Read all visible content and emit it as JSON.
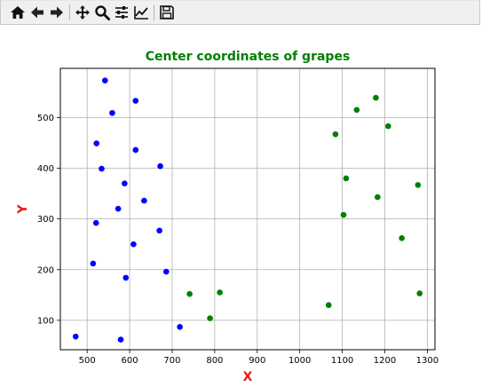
{
  "toolbar": {
    "buttons": [
      {
        "name": "home-icon",
        "label": "Home"
      },
      {
        "name": "back-icon",
        "label": "Back"
      },
      {
        "name": "forward-icon",
        "label": "Forward"
      },
      {
        "name": "pan-icon",
        "label": "Pan"
      },
      {
        "name": "zoom-icon",
        "label": "Zoom"
      },
      {
        "name": "subplots-icon",
        "label": "Configure subplots"
      },
      {
        "name": "edit-axis-icon",
        "label": "Edit axis"
      },
      {
        "name": "save-icon",
        "label": "Save"
      }
    ]
  },
  "chart_data": {
    "type": "scatter",
    "title": "Center coordinates of grapes",
    "title_color": "#008000",
    "xlabel": "X",
    "ylabel": "Y",
    "axis_label_color": "#e8191b",
    "xlim": [
      437,
      1318
    ],
    "ylim": [
      42,
      597
    ],
    "xticks": [
      500,
      600,
      700,
      800,
      900,
      1000,
      1100,
      1200,
      1300
    ],
    "xtick_labels": [
      "500",
      "600",
      "700",
      "800",
      "900",
      "1000",
      "1100",
      "1200",
      "1300"
    ],
    "yticks": [
      100,
      200,
      300,
      400,
      500
    ],
    "ytick_labels": [
      "100",
      "200",
      "300",
      "400",
      "500"
    ],
    "grid": true,
    "series": [
      {
        "color": "#0000ff",
        "points": [
          {
            "x": 542,
            "y": 573
          },
          {
            "x": 614,
            "y": 533
          },
          {
            "x": 559,
            "y": 509
          },
          {
            "x": 522,
            "y": 449
          },
          {
            "x": 614,
            "y": 436
          },
          {
            "x": 534,
            "y": 399
          },
          {
            "x": 672,
            "y": 404
          },
          {
            "x": 588,
            "y": 370
          },
          {
            "x": 634,
            "y": 336
          },
          {
            "x": 573,
            "y": 320
          },
          {
            "x": 521,
            "y": 292
          },
          {
            "x": 670,
            "y": 277
          },
          {
            "x": 609,
            "y": 250
          },
          {
            "x": 514,
            "y": 212
          },
          {
            "x": 686,
            "y": 196
          },
          {
            "x": 591,
            "y": 184
          },
          {
            "x": 718,
            "y": 87
          },
          {
            "x": 473,
            "y": 68
          },
          {
            "x": 579,
            "y": 62
          }
        ]
      },
      {
        "color": "#008000",
        "points": [
          {
            "x": 1179,
            "y": 539
          },
          {
            "x": 1134,
            "y": 515
          },
          {
            "x": 1208,
            "y": 483
          },
          {
            "x": 1084,
            "y": 467
          },
          {
            "x": 1109,
            "y": 380
          },
          {
            "x": 1278,
            "y": 367
          },
          {
            "x": 1183,
            "y": 343
          },
          {
            "x": 1103,
            "y": 308
          },
          {
            "x": 1240,
            "y": 262
          },
          {
            "x": 741,
            "y": 152
          },
          {
            "x": 812,
            "y": 155
          },
          {
            "x": 1282,
            "y": 153
          },
          {
            "x": 1068,
            "y": 130
          },
          {
            "x": 789,
            "y": 104
          }
        ]
      }
    ]
  }
}
